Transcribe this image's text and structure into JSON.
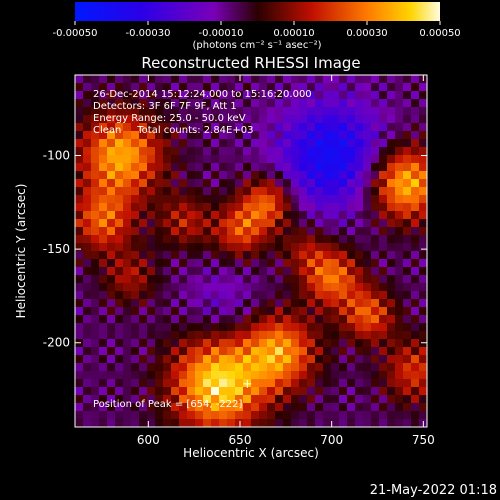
{
  "chart_data": {
    "type": "heatmap",
    "title": "Reconstructed RHESSI Image",
    "xlabel": "Heliocentric X (arcsec)",
    "ylabel": "Heliocentric Y (arcsec)",
    "xlim": [
      560,
      752
    ],
    "ylim": [
      -245,
      -57
    ],
    "x_ticks": [
      600,
      650,
      700,
      750
    ],
    "y_ticks": [
      -100,
      -150,
      -200
    ],
    "colorbar": {
      "unit": "(photons cm⁻² s⁻¹ asec⁻²)",
      "range": [
        -0.0005,
        0.0005
      ],
      "tick_values": [
        -0.0005,
        -0.0003,
        -0.0001,
        0.0001,
        0.0003,
        0.0005
      ],
      "tick_labels": [
        "-0.00050",
        "-0.00030",
        "-0.00010",
        "0.00010",
        "0.00030",
        "0.00050"
      ]
    },
    "annotations": [
      "26-Dec-2014 15:12:24.000 to 15:16:20.000",
      "Detectors: 3F 6F 7F 9F, Att 1",
      "Energy Range: 25.0 - 50.0 keV",
      "Clean     Total counts: 2.84E+03"
    ],
    "peak_label": "Position of Peak = [654, -222]",
    "peak_position": [
      654,
      -222
    ],
    "intensity_features": [
      {
        "x": 638,
        "y": -222,
        "sigma": 18,
        "value": 0.0005
      },
      {
        "x": 672,
        "y": -205,
        "sigma": 14,
        "value": 0.00038
      },
      {
        "x": 585,
        "y": -100,
        "sigma": 16,
        "value": 0.00042
      },
      {
        "x": 575,
        "y": -135,
        "sigma": 12,
        "value": 0.0003
      },
      {
        "x": 740,
        "y": -115,
        "sigma": 14,
        "value": 0.00045
      },
      {
        "x": 620,
        "y": -135,
        "sigma": 10,
        "value": 0.0002
      },
      {
        "x": 650,
        "y": -140,
        "sigma": 10,
        "value": 0.00028
      },
      {
        "x": 665,
        "y": -125,
        "sigma": 10,
        "value": 0.00032
      },
      {
        "x": 685,
        "y": -150,
        "sigma": 9,
        "value": 0.00015
      },
      {
        "x": 700,
        "y": -165,
        "sigma": 11,
        "value": 0.00034
      },
      {
        "x": 720,
        "y": -185,
        "sigma": 10,
        "value": 0.0003
      },
      {
        "x": 745,
        "y": -215,
        "sigma": 12,
        "value": 0.00025
      },
      {
        "x": 590,
        "y": -165,
        "sigma": 10,
        "value": 0.00018
      },
      {
        "x": 700,
        "y": -100,
        "sigma": 20,
        "value": -0.00035
      },
      {
        "x": 640,
        "y": -180,
        "sigma": 14,
        "value": -0.0001
      }
    ]
  },
  "footer": {
    "date": "21-May-2022 01:18"
  }
}
